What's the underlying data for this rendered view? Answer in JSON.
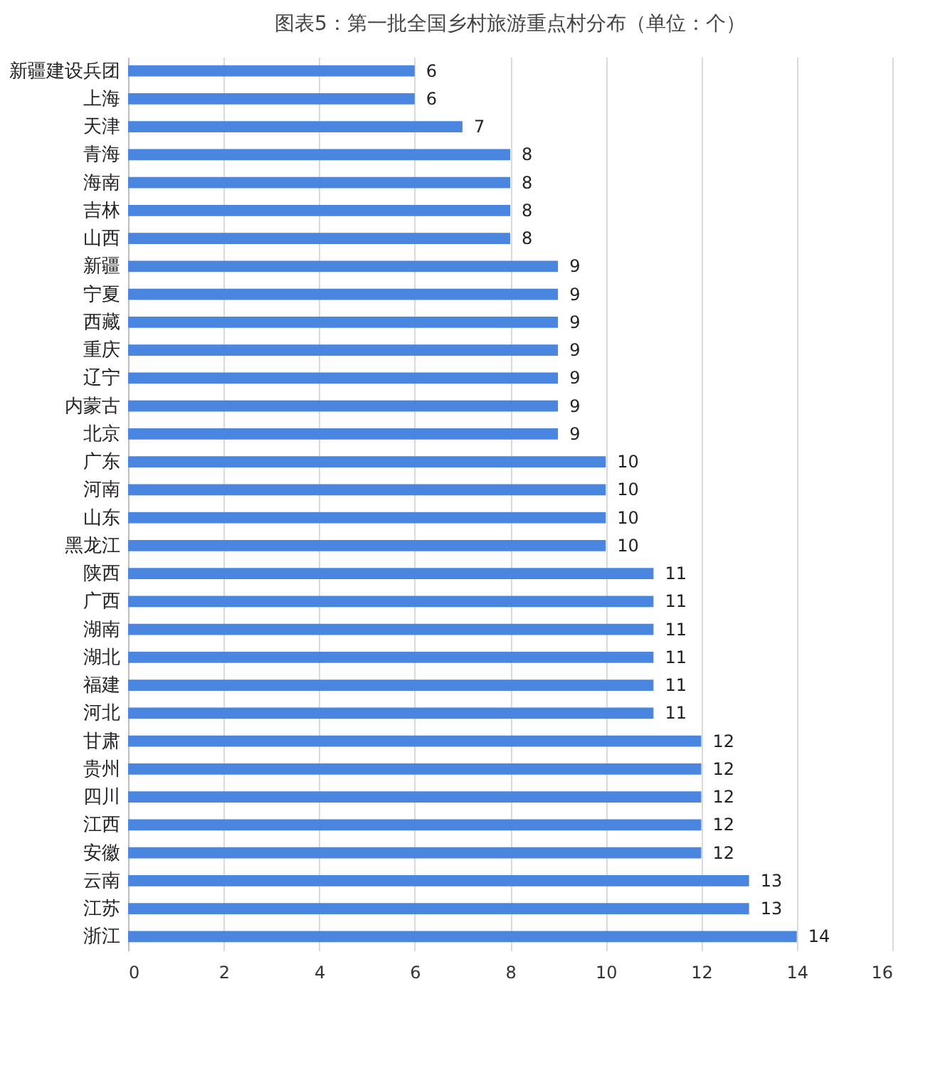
{
  "chart_data": {
    "type": "bar",
    "orientation": "horizontal",
    "title": "图表5：第一批全国乡村旅游重点村分布（单位：个）",
    "categories": [
      "新疆建设兵团",
      "上海",
      "天津",
      "青海",
      "海南",
      "吉林",
      "山西",
      "新疆",
      "宁夏",
      "西藏",
      "重庆",
      "辽宁",
      "内蒙古",
      "北京",
      "广东",
      "河南",
      "山东",
      "黑龙江",
      "陕西",
      "广西",
      "湖南",
      "湖北",
      "福建",
      "河北",
      "甘肃",
      "贵州",
      "四川",
      "江西",
      "安徽",
      "云南",
      "江苏",
      "浙江"
    ],
    "values": [
      6,
      6,
      7,
      8,
      8,
      8,
      8,
      9,
      9,
      9,
      9,
      9,
      9,
      9,
      10,
      10,
      10,
      10,
      11,
      11,
      11,
      11,
      11,
      11,
      12,
      12,
      12,
      12,
      12,
      13,
      13,
      14
    ],
    "color": "#4a86e0",
    "xlim": [
      0,
      16
    ],
    "xticks": [
      0,
      2,
      4,
      6,
      8,
      10,
      12,
      14,
      16
    ],
    "grid": "x",
    "data_labels": true
  }
}
